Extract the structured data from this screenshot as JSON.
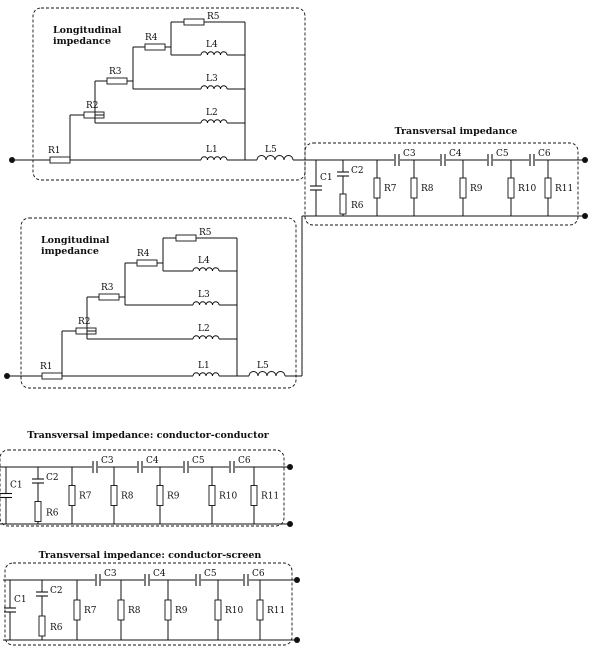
{
  "blocks": {
    "long1": {
      "title_line1": "Longitudinal",
      "title_line2": "impedance"
    },
    "long2": {
      "title_line1": "Longitudinal",
      "title_line2": "impedance"
    },
    "trans_top": {
      "title": "Transversal impedance"
    },
    "trans_cc": {
      "title": "Transversal impedance: conductor-conductor"
    },
    "trans_cs": {
      "title": "Transversal impedance: conductor-screen"
    }
  },
  "labels": {
    "R1": "R1",
    "R2": "R2",
    "R3": "R3",
    "R4": "R4",
    "R5": "R5",
    "R6": "R6",
    "R7": "R7",
    "R8": "R8",
    "R9": "R9",
    "R10": "R10",
    "R11": "R11",
    "L1": "L1",
    "L2": "L2",
    "L3": "L3",
    "L4": "L4",
    "L5": "L5",
    "C1": "C1",
    "C2": "C2",
    "C3": "C3",
    "C4": "C4",
    "C5": "C5",
    "C6": "C6"
  }
}
